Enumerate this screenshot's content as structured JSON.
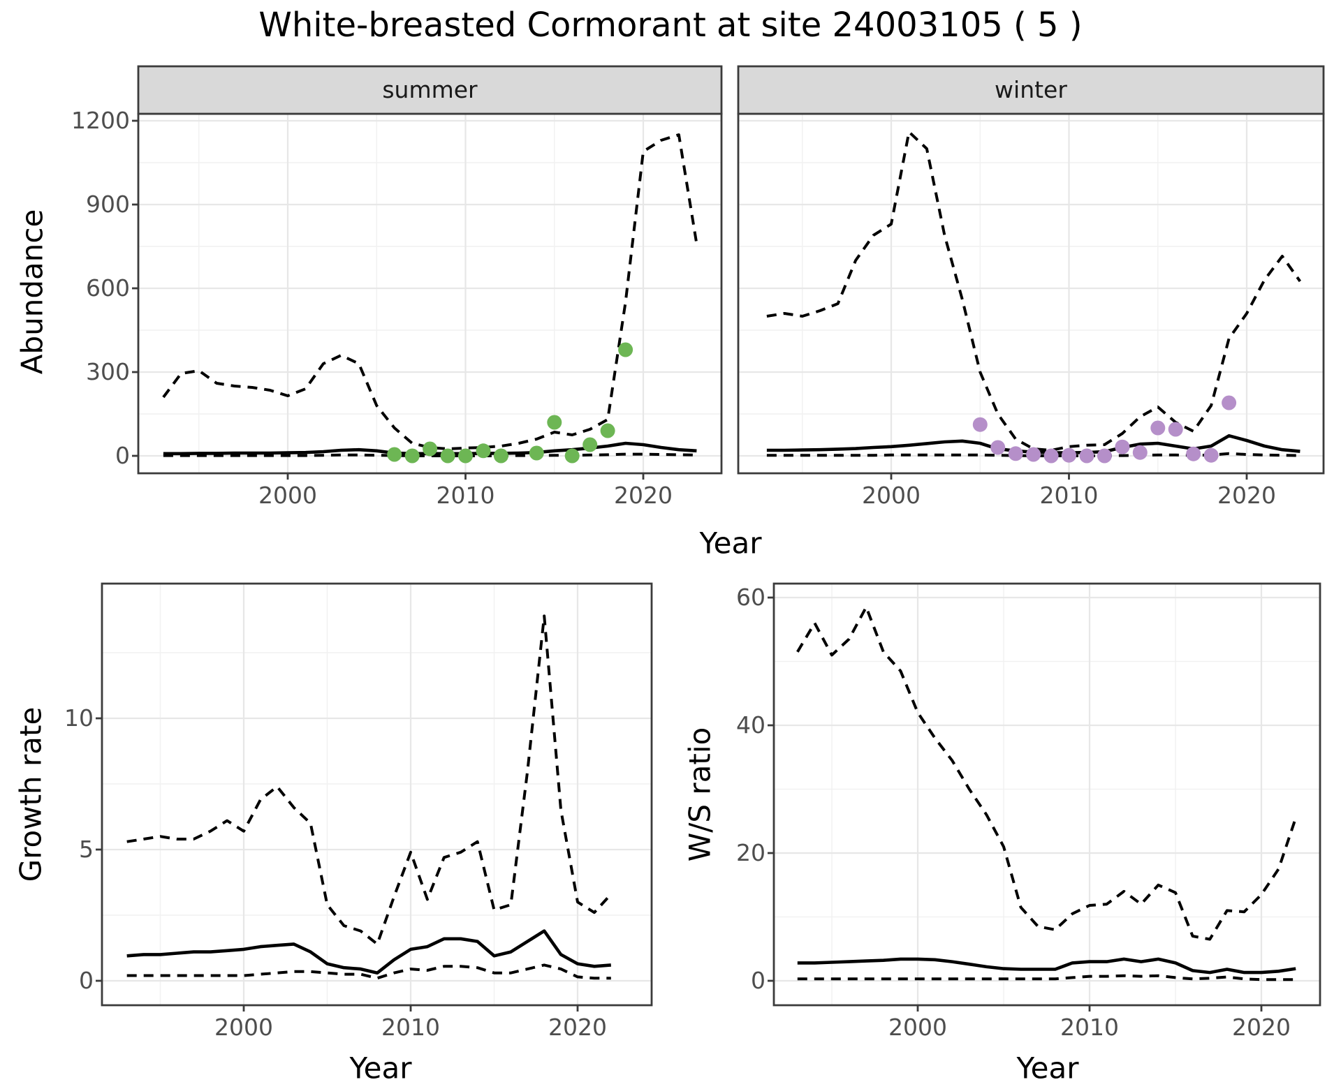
{
  "title": "White-breasted Cormorant at site 24003105 ( 5 )",
  "labels": {
    "abundance": "Abundance",
    "growth": "Growth rate",
    "ws": "W/S ratio",
    "year": "Year"
  },
  "facets": [
    {
      "label": "summer"
    },
    {
      "label": "winter"
    }
  ],
  "colors": {
    "summer_points": "#6db654",
    "winter_points": "#b58fc9",
    "line": "#000000",
    "grid_major": "#e7e7e7",
    "grid_minor": "#f1f1f1",
    "panel_border": "#3b3b3b",
    "strip_bg": "#d9d9d9",
    "strip_text": "#1a1a1a",
    "tick_text": "#4d4d4d",
    "background": "#ffffff"
  },
  "chart_data": [
    {
      "id": "abundance-summer",
      "type": "line",
      "facet": "summer",
      "xlabel": "Year",
      "ylabel": "Abundance",
      "xticks": [
        2000,
        2010,
        2020
      ],
      "xminor": [
        1995,
        2005,
        2015
      ],
      "yticks": [
        0,
        300,
        600,
        900,
        1200
      ],
      "yminor": [
        150,
        450,
        750,
        1050
      ],
      "ylim": [
        -60,
        1225
      ],
      "x": [
        1993,
        1994,
        1995,
        1996,
        1997,
        1998,
        1999,
        2000,
        2001,
        2002,
        2003,
        2004,
        2005,
        2006,
        2007,
        2008,
        2009,
        2010,
        2011,
        2012,
        2013,
        2014,
        2015,
        2016,
        2017,
        2018,
        2019,
        2020,
        2021,
        2022,
        2023
      ],
      "series": [
        {
          "name": "ci-upper",
          "style": "dashed",
          "values": [
            210,
            295,
            305,
            260,
            250,
            245,
            235,
            215,
            240,
            330,
            360,
            330,
            180,
            100,
            45,
            30,
            25,
            28,
            30,
            35,
            45,
            60,
            85,
            75,
            95,
            130,
            550,
            1090,
            1130,
            1150,
            760
          ]
        },
        {
          "name": "median",
          "style": "solid",
          "values": [
            8,
            8,
            9,
            9,
            10,
            10,
            10,
            11,
            12,
            15,
            20,
            22,
            18,
            10,
            8,
            8,
            8,
            8,
            9,
            9,
            10,
            12,
            18,
            22,
            28,
            35,
            45,
            40,
            30,
            22,
            18
          ]
        },
        {
          "name": "ci-lower",
          "style": "dashed",
          "values": [
            1,
            1,
            1,
            1,
            1,
            1,
            1,
            1,
            1,
            2,
            3,
            3,
            2,
            1,
            0,
            0,
            0,
            0,
            0,
            0,
            1,
            1,
            2,
            2,
            3,
            4,
            6,
            6,
            5,
            4,
            3
          ]
        }
      ],
      "points": {
        "name": "observed-counts-summer",
        "color": "#6db654",
        "x": [
          2006,
          2007,
          2008,
          2009,
          2010,
          2011,
          2012,
          2014,
          2015,
          2016,
          2017,
          2018,
          2019
        ],
        "values": [
          5,
          0,
          25,
          0,
          0,
          18,
          0,
          10,
          120,
          0,
          40,
          90,
          380
        ]
      }
    },
    {
      "id": "abundance-winter",
      "type": "line",
      "facet": "winter",
      "xlabel": "Year",
      "ylabel": "Abundance",
      "xticks": [
        2000,
        2010,
        2020
      ],
      "xminor": [
        1995,
        2005,
        2015
      ],
      "yticks": [
        0,
        300,
        600,
        900,
        1200
      ],
      "yminor": [
        150,
        450,
        750,
        1050
      ],
      "ylim": [
        -60,
        1225
      ],
      "x": [
        1993,
        1994,
        1995,
        1996,
        1997,
        1998,
        1999,
        2000,
        2001,
        2002,
        2003,
        2004,
        2005,
        2006,
        2007,
        2008,
        2009,
        2010,
        2011,
        2012,
        2013,
        2014,
        2015,
        2016,
        2017,
        2018,
        2019,
        2020,
        2021,
        2022,
        2023
      ],
      "series": [
        {
          "name": "ci-upper",
          "style": "dashed",
          "values": [
            500,
            510,
            500,
            520,
            545,
            700,
            790,
            830,
            1160,
            1100,
            790,
            560,
            300,
            150,
            60,
            25,
            20,
            33,
            38,
            40,
            80,
            140,
            175,
            120,
            88,
            180,
            420,
            510,
            630,
            715,
            625
          ]
        },
        {
          "name": "median",
          "style": "solid",
          "values": [
            20,
            20,
            21,
            22,
            24,
            26,
            30,
            33,
            38,
            44,
            50,
            53,
            45,
            25,
            18,
            13,
            11,
            11,
            12,
            15,
            30,
            42,
            45,
            35,
            25,
            35,
            72,
            55,
            35,
            22,
            16
          ]
        },
        {
          "name": "ci-lower",
          "style": "dashed",
          "values": [
            2,
            2,
            2,
            2,
            2,
            2,
            2,
            3,
            3,
            3,
            3,
            3,
            3,
            2,
            1,
            0,
            0,
            0,
            0,
            0,
            1,
            2,
            3,
            3,
            2,
            3,
            8,
            5,
            3,
            2,
            1
          ]
        }
      ],
      "points": {
        "name": "observed-counts-winter",
        "color": "#b58fc9",
        "x": [
          2005,
          2006,
          2007,
          2008,
          2009,
          2010,
          2011,
          2012,
          2013,
          2014,
          2015,
          2016,
          2017,
          2018,
          2019
        ],
        "values": [
          112,
          30,
          8,
          5,
          0,
          2,
          0,
          0,
          32,
          12,
          100,
          95,
          7,
          2,
          190
        ]
      }
    },
    {
      "id": "growth-rate",
      "type": "line",
      "facet": null,
      "xlabel": "Year",
      "ylabel": "Growth rate",
      "xticks": [
        2000,
        2010,
        2020
      ],
      "xminor": [
        1995,
        2005,
        2015
      ],
      "yticks": [
        0,
        5,
        10
      ],
      "yminor": [
        2.5,
        7.5,
        12.5
      ],
      "ylim": [
        -0.9,
        15.1
      ],
      "x": [
        1993,
        1994,
        1995,
        1996,
        1997,
        1998,
        1999,
        2000,
        2001,
        2002,
        2003,
        2004,
        2005,
        2006,
        2007,
        2008,
        2009,
        2010,
        2011,
        2012,
        2013,
        2014,
        2015,
        2016,
        2017,
        2018,
        2019,
        2020,
        2021,
        2022
      ],
      "series": [
        {
          "name": "ci-upper",
          "style": "dashed",
          "values": [
            5.3,
            5.4,
            5.5,
            5.4,
            5.4,
            5.7,
            6.1,
            5.7,
            6.9,
            7.4,
            6.6,
            6.0,
            2.9,
            2.1,
            1.9,
            1.4,
            3.2,
            4.9,
            3.1,
            4.7,
            4.9,
            5.3,
            2.7,
            2.9,
            8.0,
            13.9,
            6.5,
            3.0,
            2.6,
            3.3
          ]
        },
        {
          "name": "median",
          "style": "solid",
          "values": [
            0.95,
            1.0,
            1.0,
            1.05,
            1.1,
            1.1,
            1.15,
            1.2,
            1.3,
            1.35,
            1.4,
            1.1,
            0.65,
            0.5,
            0.45,
            0.3,
            0.8,
            1.2,
            1.3,
            1.6,
            1.6,
            1.5,
            0.95,
            1.1,
            1.5,
            1.9,
            1.0,
            0.65,
            0.55,
            0.6
          ]
        },
        {
          "name": "ci-lower",
          "style": "dashed",
          "values": [
            0.2,
            0.2,
            0.2,
            0.2,
            0.2,
            0.2,
            0.2,
            0.2,
            0.25,
            0.3,
            0.35,
            0.35,
            0.3,
            0.25,
            0.25,
            0.1,
            0.3,
            0.45,
            0.4,
            0.55,
            0.55,
            0.5,
            0.3,
            0.3,
            0.45,
            0.6,
            0.45,
            0.15,
            0.1,
            0.1
          ]
        }
      ],
      "points": null
    },
    {
      "id": "ws-ratio",
      "type": "line",
      "facet": null,
      "xlabel": "Year",
      "ylabel": "W/S ratio",
      "xticks": [
        2000,
        2010,
        2020
      ],
      "xminor": [
        1995,
        2005,
        2015
      ],
      "yticks": [
        0,
        20,
        40,
        60
      ],
      "yminor": [
        10,
        30,
        50
      ],
      "ylim": [
        -3.8,
        62.3
      ],
      "x": [
        1993,
        1994,
        1995,
        1996,
        1997,
        1998,
        1999,
        2000,
        2001,
        2002,
        2003,
        2004,
        2005,
        2006,
        2007,
        2008,
        2009,
        2010,
        2011,
        2012,
        2013,
        2014,
        2015,
        2016,
        2017,
        2018,
        2019,
        2020,
        2021,
        2022
      ],
      "series": [
        {
          "name": "ci-upper",
          "style": "dashed",
          "values": [
            51.5,
            56,
            51,
            53.5,
            58.5,
            51.5,
            48.5,
            42,
            38,
            34.5,
            30,
            26,
            21,
            11.5,
            8.5,
            8,
            10.5,
            11.8,
            12,
            14,
            12,
            15,
            13.8,
            7,
            6.5,
            11,
            10.8,
            13.5,
            17.5,
            25.5
          ]
        },
        {
          "name": "median",
          "style": "solid",
          "values": [
            2.8,
            2.8,
            2.9,
            3.0,
            3.1,
            3.2,
            3.4,
            3.4,
            3.3,
            3.0,
            2.6,
            2.2,
            1.9,
            1.8,
            1.8,
            1.8,
            2.8,
            3.0,
            3.0,
            3.4,
            3.0,
            3.4,
            2.8,
            1.6,
            1.3,
            1.8,
            1.3,
            1.3,
            1.5,
            1.9
          ]
        },
        {
          "name": "ci-lower",
          "style": "dashed",
          "values": [
            0.3,
            0.3,
            0.3,
            0.3,
            0.3,
            0.3,
            0.3,
            0.3,
            0.3,
            0.3,
            0.3,
            0.3,
            0.3,
            0.3,
            0.3,
            0.3,
            0.5,
            0.7,
            0.7,
            0.8,
            0.7,
            0.8,
            0.5,
            0.3,
            0.4,
            0.6,
            0.3,
            0.2,
            0.2,
            0.2
          ]
        }
      ],
      "points": null
    }
  ]
}
